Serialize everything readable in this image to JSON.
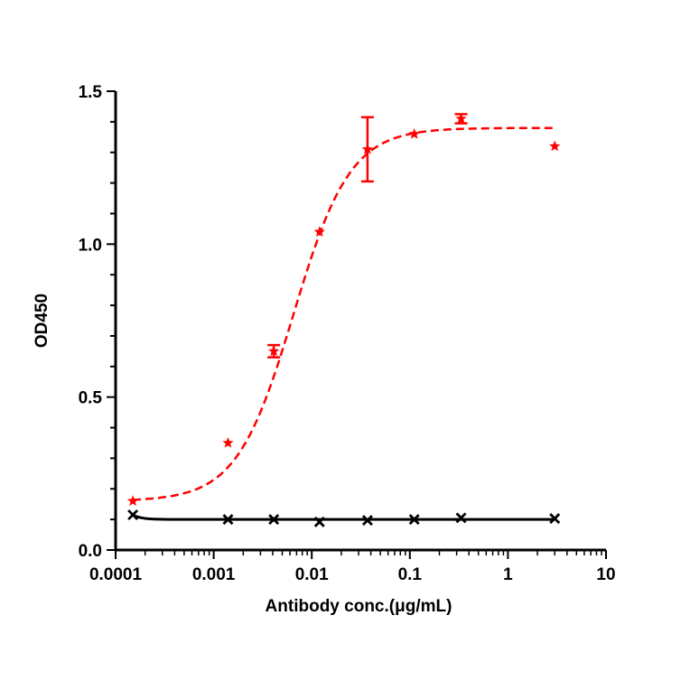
{
  "chart_data": {
    "type": "scatter",
    "xlabel": "Antibody conc.(μg/mL)",
    "ylabel": "OD450",
    "xscale": "log",
    "xlim": [
      0.0001,
      10
    ],
    "ylim": [
      0.0,
      1.5
    ],
    "x_ticks": [
      "0.0001",
      "0.001",
      "0.01",
      "0.1",
      "1",
      "10"
    ],
    "y_ticks": [
      "0.0",
      "0.5",
      "1.0",
      "1.5"
    ],
    "grid": false,
    "series": [
      {
        "marker": "star",
        "color": "#ff0000",
        "fit_line": "dashed",
        "points": [
          {
            "x": 0.00015,
            "y": 0.16
          },
          {
            "x": 0.0014,
            "y": 0.35
          },
          {
            "x": 0.0041,
            "y": 0.65,
            "err": 0.02
          },
          {
            "x": 0.012,
            "y": 1.04
          },
          {
            "x": 0.037,
            "y": 1.31,
            "err": 0.105
          },
          {
            "x": 0.111,
            "y": 1.36
          },
          {
            "x": 0.333,
            "y": 1.41,
            "err": 0.015
          },
          {
            "x": 3.0,
            "y": 1.32
          }
        ],
        "fit": {
          "bottom": 0.16,
          "top": 1.38,
          "ec50": 0.0065,
          "hill": 1.5
        }
      },
      {
        "marker": "x",
        "color": "#000000",
        "fit_line": "solid",
        "points": [
          {
            "x": 0.00015,
            "y": 0.115
          },
          {
            "x": 0.0014,
            "y": 0.1
          },
          {
            "x": 0.0041,
            "y": 0.1
          },
          {
            "x": 0.012,
            "y": 0.092
          },
          {
            "x": 0.037,
            "y": 0.097
          },
          {
            "x": 0.111,
            "y": 0.1
          },
          {
            "x": 0.333,
            "y": 0.105
          },
          {
            "x": 3.0,
            "y": 0.103
          }
        ],
        "fit": {
          "start_y": 0.115,
          "plateau": 0.1
        }
      }
    ]
  }
}
